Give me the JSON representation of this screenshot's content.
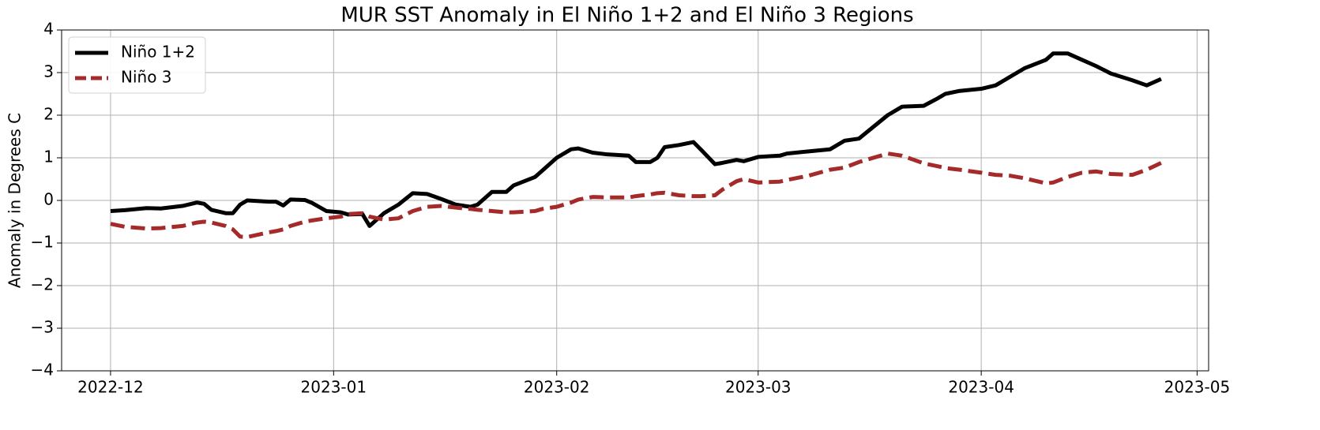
{
  "chart_data": {
    "type": "line",
    "title": "MUR SST Anomaly in El Niño 1+2 and El Niño 3 Regions",
    "y_label": "Anomaly in Degrees C",
    "x": [
      0,
      2,
      5,
      7,
      10,
      12,
      13,
      14,
      16,
      17,
      18,
      19,
      22,
      23,
      24,
      25,
      27,
      28,
      30,
      32,
      33,
      35,
      36,
      38,
      40,
      42,
      44,
      46,
      48,
      50,
      51,
      53,
      55,
      56,
      59,
      60,
      62,
      64,
      65,
      67,
      69,
      72,
      73,
      75,
      76,
      77,
      79,
      81,
      82,
      84,
      85,
      87,
      88,
      90,
      93,
      94,
      97,
      100,
      102,
      104,
      108,
      110,
      113,
      115,
      116,
      118,
      121,
      123,
      125,
      127,
      130,
      131,
      133,
      135,
      137,
      139,
      142,
      144,
      146
    ],
    "series": [
      {
        "name": "Niño 1+2",
        "color": "#000000",
        "linestyle": "solid",
        "values": [
          -0.25,
          -0.23,
          -0.18,
          -0.19,
          -0.13,
          -0.05,
          -0.08,
          -0.22,
          -0.3,
          -0.3,
          -0.1,
          0,
          -0.03,
          -0.03,
          -0.12,
          0.02,
          0.01,
          -0.06,
          -0.25,
          -0.28,
          -0.33,
          -0.32,
          -0.6,
          -0.3,
          -0.1,
          0.17,
          0.15,
          0.03,
          -0.1,
          -0.15,
          -0.1,
          0.2,
          0.2,
          0.35,
          0.55,
          0.7,
          1.0,
          1.2,
          1.22,
          1.12,
          1.08,
          1.05,
          0.9,
          0.9,
          1.0,
          1.25,
          1.3,
          1.37,
          1.2,
          0.85,
          0.88,
          0.95,
          0.92,
          1.02,
          1.05,
          1.1,
          1.15,
          1.2,
          1.4,
          1.45,
          2.0,
          2.2,
          2.22,
          2.4,
          2.5,
          2.57,
          2.62,
          2.7,
          2.9,
          3.1,
          3.3,
          3.45,
          3.45,
          3.3,
          3.15,
          2.98,
          2.82,
          2.7,
          2.85
        ]
      },
      {
        "name": "Niño 3",
        "color": "#a52a2a",
        "linestyle": "dashed",
        "values": [
          -0.55,
          -0.62,
          -0.66,
          -0.65,
          -0.6,
          -0.52,
          -0.5,
          -0.52,
          -0.6,
          -0.68,
          -0.85,
          -0.86,
          -0.75,
          -0.72,
          -0.68,
          -0.6,
          -0.5,
          -0.47,
          -0.42,
          -0.38,
          -0.32,
          -0.3,
          -0.38,
          -0.45,
          -0.42,
          -0.25,
          -0.15,
          -0.13,
          -0.17,
          -0.2,
          -0.22,
          -0.25,
          -0.28,
          -0.28,
          -0.25,
          -0.2,
          -0.15,
          -0.05,
          0.02,
          0.08,
          0.07,
          0.07,
          0.1,
          0.14,
          0.17,
          0.18,
          0.12,
          0.1,
          0.1,
          0.12,
          0.25,
          0.45,
          0.5,
          0.42,
          0.44,
          0.48,
          0.58,
          0.72,
          0.77,
          0.9,
          1.1,
          1.05,
          0.87,
          0.8,
          0.76,
          0.72,
          0.65,
          0.6,
          0.58,
          0.52,
          0.4,
          0.42,
          0.55,
          0.65,
          0.68,
          0.62,
          0.6,
          0.72,
          0.88
        ]
      }
    ],
    "xlim": [
      -6.8,
      152.6
    ],
    "xticks": [
      {
        "value": 0,
        "label": "2022-12"
      },
      {
        "value": 31,
        "label": "2023-01"
      },
      {
        "value": 62,
        "label": "2023-02"
      },
      {
        "value": 90,
        "label": "2023-03"
      },
      {
        "value": 121,
        "label": "2023-04"
      },
      {
        "value": 151,
        "label": "2023-05"
      }
    ],
    "ylim": [
      -4,
      4
    ],
    "yticks": [
      {
        "value": -4,
        "label": "−4"
      },
      {
        "value": -3,
        "label": "−3"
      },
      {
        "value": -2,
        "label": "−2"
      },
      {
        "value": -1,
        "label": "−1"
      },
      0,
      1,
      2,
      3,
      4
    ],
    "grid": true,
    "legend": "upper left"
  }
}
